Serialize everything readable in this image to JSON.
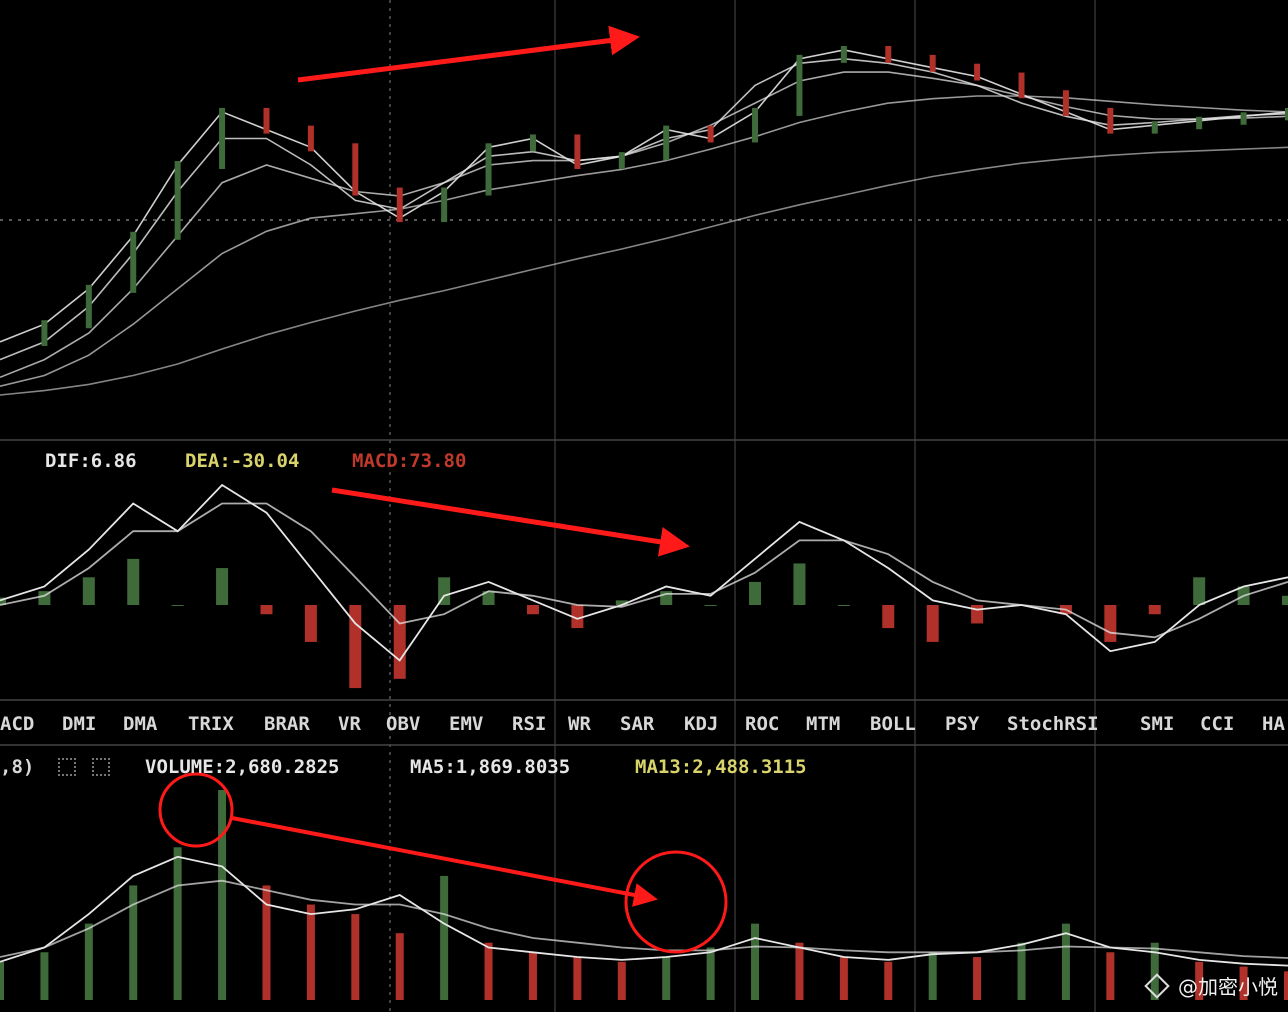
{
  "chart_data": [
    {
      "type": "line",
      "panel": "price",
      "series": [
        {
          "values": [
            300,
            320,
            360,
            420,
            500,
            560,
            540,
            520,
            470,
            440,
            470,
            520,
            530,
            500,
            510,
            540,
            530,
            560,
            620,
            630,
            620,
            610,
            600,
            580,
            560,
            540,
            545,
            550,
            555,
            560
          ]
        },
        {
          "values": [
            280,
            300,
            340,
            400,
            470,
            530,
            530,
            500,
            460,
            450,
            480,
            510,
            515,
            505,
            510,
            530,
            540,
            590,
            615,
            620,
            615,
            605,
            590,
            570,
            555,
            545,
            548,
            552,
            556,
            558
          ]
        },
        {
          "values": [
            260,
            280,
            310,
            360,
            420,
            480,
            500,
            485,
            470,
            465,
            480,
            500,
            505,
            505,
            510,
            525,
            545,
            570,
            595,
            605,
            605,
            598,
            590,
            578,
            566,
            556,
            552,
            552,
            553,
            555
          ]
        },
        {
          "values": [
            250,
            262,
            285,
            320,
            360,
            400,
            425,
            440,
            445,
            450,
            460,
            472,
            480,
            488,
            495,
            505,
            518,
            532,
            548,
            560,
            570,
            575,
            578,
            578,
            576,
            572,
            568,
            565,
            562,
            560
          ]
        },
        {
          "values": [
            240,
            245,
            252,
            262,
            275,
            292,
            308,
            322,
            335,
            347,
            358,
            370,
            382,
            394,
            405,
            417,
            430,
            443,
            455,
            466,
            477,
            487,
            495,
            502,
            507,
            511,
            514,
            516,
            518,
            520
          ]
        }
      ]
    },
    {
      "type": "bar",
      "panel": "macd",
      "title": "DIF:6.86   DEA:-30.04   MACD:73.80",
      "series": [
        {
          "name": "DIF",
          "values": [
            5,
            20,
            60,
            110,
            80,
            130,
            100,
            40,
            -20,
            -60,
            10,
            25,
            5,
            -15,
            0,
            20,
            10,
            50,
            90,
            70,
            40,
            5,
            -5,
            0,
            -10,
            -50,
            -40,
            0,
            20,
            30
          ]
        },
        {
          "name": "DEA",
          "values": [
            0,
            10,
            40,
            80,
            80,
            110,
            110,
            80,
            30,
            -20,
            -10,
            15,
            10,
            0,
            -2,
            12,
            12,
            35,
            70,
            70,
            55,
            25,
            5,
            0,
            -5,
            -30,
            -35,
            -15,
            10,
            25
          ]
        },
        {
          "name": "MACD",
          "values": [
            8,
            15,
            30,
            50,
            0,
            40,
            -10,
            -40,
            -90,
            -80,
            30,
            15,
            -10,
            -25,
            5,
            15,
            0,
            25,
            45,
            0,
            -25,
            -40,
            -20,
            0,
            -10,
            -40,
            -10,
            30,
            20,
            10
          ]
        }
      ]
    },
    {
      "type": "bar",
      "panel": "volume",
      "title": "VOLUME:2,680.2825   MA5:1,869.8035   MA13:2,488.3115",
      "series": [
        {
          "name": "VOLUME",
          "values": [
            40,
            50,
            80,
            120,
            160,
            220,
            120,
            100,
            90,
            70,
            130,
            60,
            50,
            45,
            40,
            45,
            55,
            80,
            60,
            45,
            40,
            50,
            45,
            60,
            80,
            50,
            60,
            40,
            35,
            30
          ]
        },
        {
          "name": "MA5",
          "values": [
            40,
            55,
            90,
            130,
            150,
            140,
            100,
            90,
            95,
            110,
            80,
            55,
            50,
            45,
            42,
            45,
            50,
            65,
            55,
            45,
            42,
            48,
            50,
            58,
            70,
            55,
            50,
            42,
            38,
            36
          ]
        },
        {
          "name": "MA13",
          "values": [
            45,
            55,
            75,
            100,
            120,
            125,
            115,
            105,
            100,
            100,
            90,
            75,
            65,
            60,
            55,
            52,
            52,
            56,
            55,
            52,
            50,
            50,
            50,
            52,
            56,
            55,
            54,
            50,
            46,
            44
          ]
        }
      ]
    }
  ],
  "macd_header": {
    "dif": "DIF:6.86",
    "dea": "DEA:-30.04",
    "macd": "MACD:73.80"
  },
  "volume_header": {
    "params": ",8)",
    "volume": "VOLUME:2,680.2825",
    "ma5": "MA5:1,869.8035",
    "ma13": "MA13:2,488.3115"
  },
  "indicator_tabs": [
    "ACD",
    "DMI",
    "DMA",
    "TRIX",
    "BRAR",
    "VR",
    "OBV",
    "EMV",
    "RSI",
    "WR",
    "SAR",
    "KDJ",
    "ROC",
    "MTM",
    "BOLL",
    "PSY",
    "StochRSI",
    "SMI",
    "CCI",
    "HA"
  ],
  "watermark": "@加密小悦",
  "colors": {
    "background": "#000000",
    "up_bar": "#3f6b3a",
    "down_bar": "#b0302a",
    "line": "#e6e6e6",
    "dea_label": "#d8d36a",
    "macd_label": "#c0392b",
    "annotation": "#ff1a1a",
    "ma13_label": "#d8d36a"
  }
}
